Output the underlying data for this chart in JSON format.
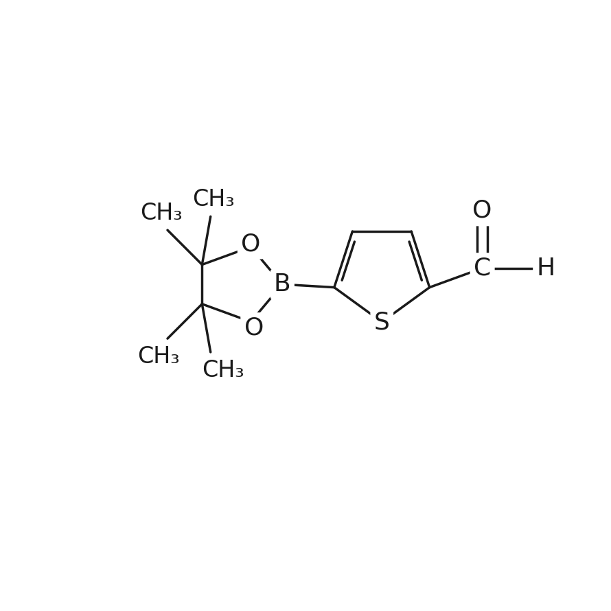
{
  "background_color": "#ffffff",
  "line_color": "#1a1a1a",
  "line_width": 2.5,
  "font_size": 24,
  "figure_size": [
    8.9,
    8.9
  ],
  "dpi": 100,
  "xlim": [
    0,
    10
  ],
  "ylim": [
    0,
    10
  ]
}
